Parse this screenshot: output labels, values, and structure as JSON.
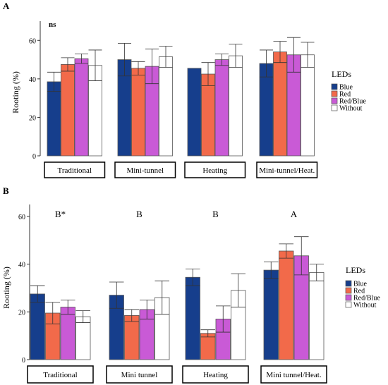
{
  "colors": {
    "Blue": "#163e8c",
    "Red": "#f26a4a",
    "Red/Blue": "#c95ad6",
    "Without": "#ffffff"
  },
  "chart_data": [
    {
      "type": "bar",
      "panel_label": "A",
      "title": "",
      "xlabel": "",
      "ylabel": "Rooting (%)",
      "ylim": [
        0,
        70
      ],
      "yticks": [
        0,
        20,
        40,
        60
      ],
      "grid": false,
      "legend_title": "LEDs",
      "legend_position": "right",
      "categories": [
        "Traditional",
        "Mini-tunnel",
        "Heating",
        "Mini-tunnel/Heat."
      ],
      "annotations": [
        "ns"
      ],
      "series": [
        {
          "name": "Blue",
          "values": [
            38.5,
            50.0,
            45.5,
            48.0
          ],
          "errors": [
            5.0,
            8.5,
            0,
            7.0
          ]
        },
        {
          "name": "Red",
          "values": [
            47.5,
            45.5,
            42.5,
            54.0
          ],
          "errors": [
            3.5,
            3.5,
            6.0,
            5.5
          ]
        },
        {
          "name": "Red/Blue",
          "values": [
            50.5,
            46.5,
            50.0,
            52.5
          ],
          "errors": [
            2.5,
            9.0,
            3.0,
            9.0
          ]
        },
        {
          "name": "Without",
          "values": [
            47.0,
            51.5,
            52.0,
            52.5
          ],
          "errors": [
            8.0,
            5.5,
            6.0,
            6.5
          ]
        }
      ]
    },
    {
      "type": "bar",
      "panel_label": "B",
      "title": "",
      "xlabel": "",
      "ylabel": "Rooting (%)",
      "ylim": [
        0,
        65
      ],
      "yticks": [
        0,
        20,
        40,
        60
      ],
      "grid": false,
      "legend_title": "LEDs",
      "legend_position": "right",
      "categories": [
        "Traditional",
        "Mini tunnel",
        "Heating",
        "Mini tunnel/Heat."
      ],
      "annotations": [
        "B*",
        "B",
        "B",
        "A"
      ],
      "series": [
        {
          "name": "Blue",
          "values": [
            27.5,
            27.0,
            34.5,
            37.5
          ],
          "errors": [
            3.5,
            5.5,
            3.5,
            3.5
          ]
        },
        {
          "name": "Red",
          "values": [
            19.5,
            18.5,
            11.0,
            45.5
          ],
          "errors": [
            4.5,
            2.5,
            1.5,
            3.0
          ]
        },
        {
          "name": "Red/Blue",
          "values": [
            22.0,
            21.0,
            17.0,
            43.5
          ],
          "errors": [
            3.0,
            4.0,
            5.5,
            8.0
          ]
        },
        {
          "name": "Without",
          "values": [
            18.0,
            26.0,
            29.0,
            36.5
          ],
          "errors": [
            2.5,
            7.0,
            7.0,
            3.5
          ]
        }
      ]
    }
  ]
}
